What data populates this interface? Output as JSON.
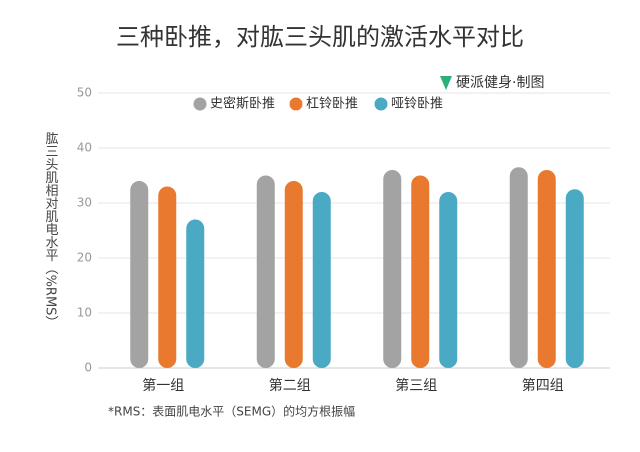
{
  "chart_data": {
    "type": "bar",
    "title": "三种卧推，对肱三头肌的激活水平对比",
    "source": "硬派健身·制图",
    "y_label": "肱三头肌相对肌电水平（%RMS）",
    "footnote": "*RMS：表面肌电水平（SEMG）的均方根振幅",
    "categories": [
      "第一组",
      "第二组",
      "第三组",
      "第四组"
    ],
    "series": [
      {
        "name": "史密斯卧推",
        "color": "#a3a3a3",
        "values": [
          34,
          35,
          36,
          36.5
        ]
      },
      {
        "name": "杠铃卧推",
        "color": "#e8792e",
        "values": [
          33,
          34,
          35,
          36
        ]
      },
      {
        "name": "哑铃卧推",
        "color": "#4aaac4",
        "values": [
          27,
          32,
          32,
          32.5
        ]
      }
    ],
    "ylim": [
      0,
      50
    ],
    "yticks": [
      0,
      10,
      20,
      30,
      40,
      50
    ],
    "grid": true
  }
}
